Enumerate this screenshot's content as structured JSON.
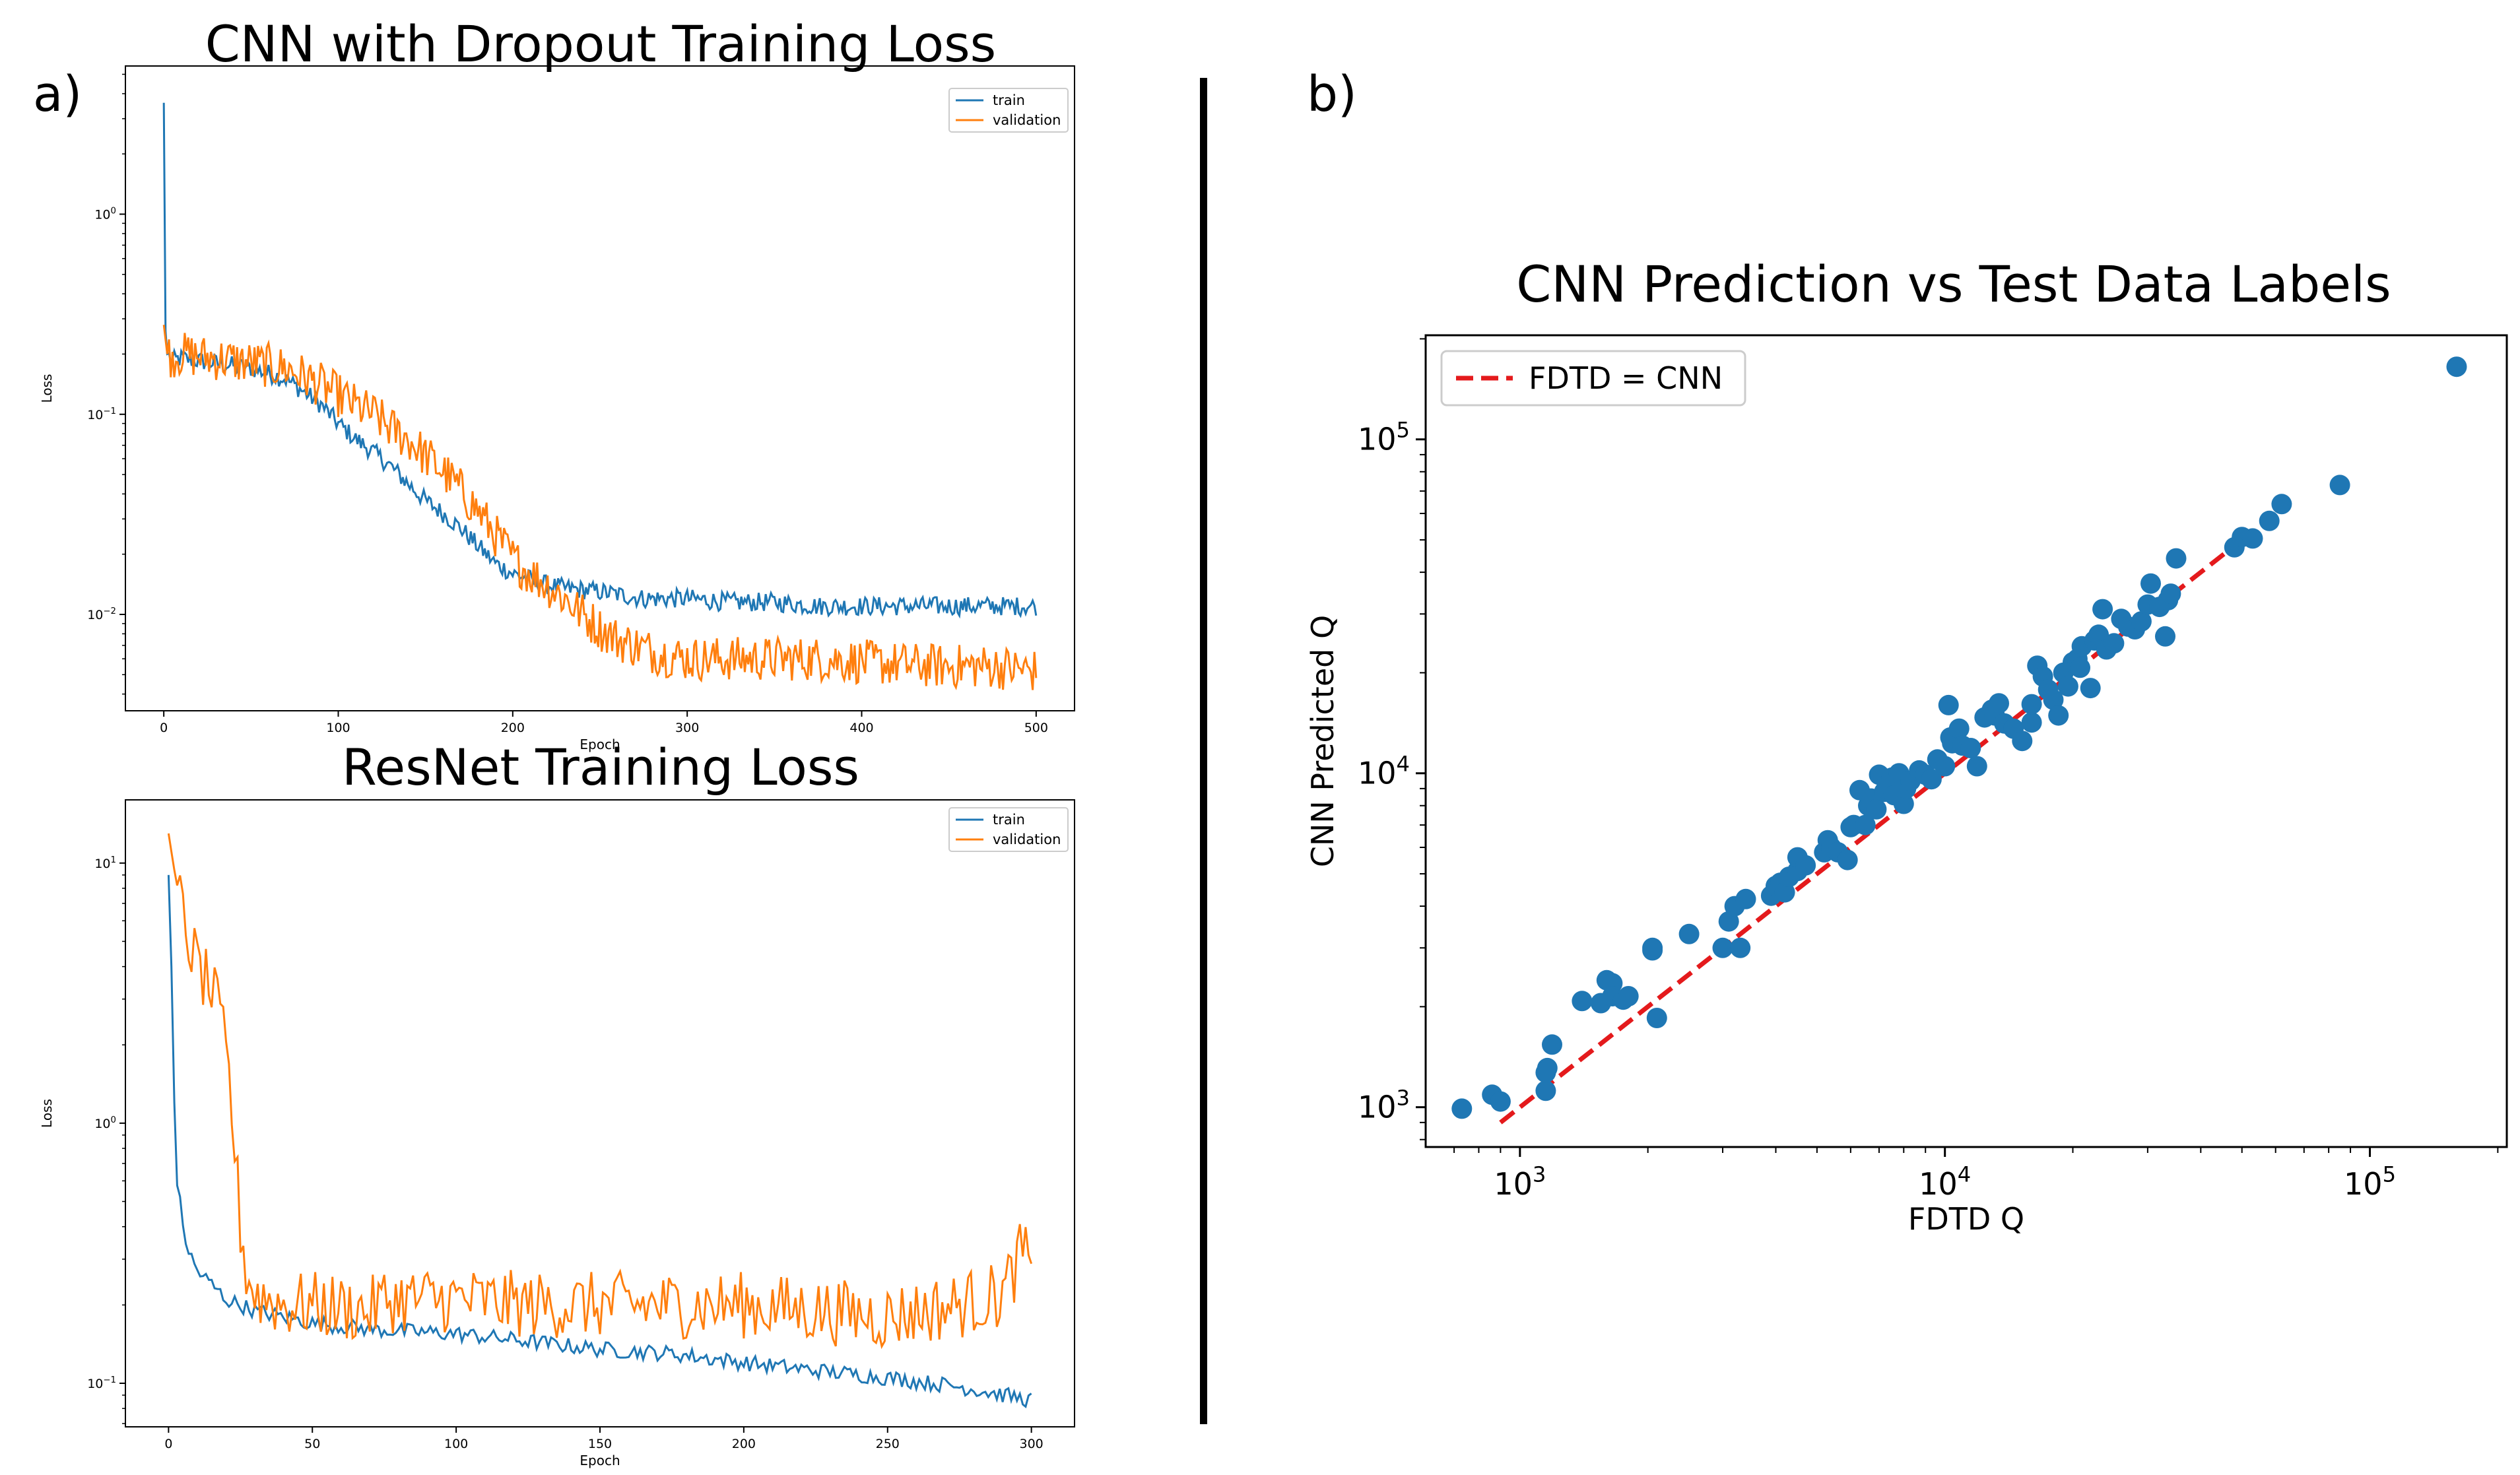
{
  "panel_labels": {
    "a": "a)",
    "b": "b)"
  },
  "chart_data": [
    {
      "type": "line",
      "title": "CNN with Dropout Training Loss",
      "xlabel": "Epoch",
      "ylabel": "Loss",
      "yscale": "log",
      "xlim": [
        -22,
        522
      ],
      "ylim": [
        0.0033,
        5.5
      ],
      "xticks": [
        "0",
        "100",
        "200",
        "300",
        "400",
        "500"
      ],
      "yticks": [
        "10^0",
        "10^-1",
        "10^-2"
      ],
      "legend_position": "top-right",
      "grid": false,
      "series": [
        {
          "name": "train",
          "color": "#1f77b4",
          "points": [
            [
              0,
              3.6
            ],
            [
              1,
              0.26
            ],
            [
              2,
              0.2
            ],
            [
              5,
              0.185
            ],
            [
              10,
              0.19
            ],
            [
              20,
              0.185
            ],
            [
              30,
              0.18
            ],
            [
              40,
              0.175
            ],
            [
              50,
              0.17
            ],
            [
              60,
              0.16
            ],
            [
              70,
              0.15
            ],
            [
              80,
              0.13
            ],
            [
              90,
              0.112
            ],
            [
              100,
              0.09
            ],
            [
              110,
              0.075
            ],
            [
              120,
              0.065
            ],
            [
              130,
              0.055
            ],
            [
              140,
              0.045
            ],
            [
              150,
              0.037
            ],
            [
              160,
              0.032
            ],
            [
              170,
              0.027
            ],
            [
              180,
              0.022
            ],
            [
              190,
              0.018
            ],
            [
              200,
              0.016
            ],
            [
              210,
              0.015
            ],
            [
              220,
              0.014
            ],
            [
              230,
              0.0135
            ],
            [
              250,
              0.013
            ],
            [
              275,
              0.012
            ],
            [
              300,
              0.012
            ],
            [
              325,
              0.0115
            ],
            [
              350,
              0.0115
            ],
            [
              375,
              0.011
            ],
            [
              400,
              0.011
            ],
            [
              425,
              0.011
            ],
            [
              450,
              0.011
            ],
            [
              475,
              0.011
            ],
            [
              500,
              0.011
            ]
          ],
          "noise": 0.11
        },
        {
          "name": "validation",
          "color": "#ff7f0e",
          "points": [
            [
              0,
              0.28
            ],
            [
              2,
              0.2
            ],
            [
              5,
              0.195
            ],
            [
              10,
              0.2
            ],
            [
              20,
              0.195
            ],
            [
              30,
              0.19
            ],
            [
              40,
              0.185
            ],
            [
              50,
              0.18
            ],
            [
              60,
              0.175
            ],
            [
              70,
              0.17
            ],
            [
              80,
              0.155
            ],
            [
              90,
              0.14
            ],
            [
              100,
              0.125
            ],
            [
              110,
              0.11
            ],
            [
              120,
              0.1
            ],
            [
              130,
              0.085
            ],
            [
              140,
              0.075
            ],
            [
              150,
              0.062
            ],
            [
              160,
              0.052
            ],
            [
              170,
              0.042
            ],
            [
              180,
              0.033
            ],
            [
              190,
              0.025
            ],
            [
              200,
              0.019
            ],
            [
              210,
              0.016
            ],
            [
              220,
              0.014
            ],
            [
              230,
              0.012
            ],
            [
              240,
              0.01
            ],
            [
              250,
              0.0085
            ],
            [
              260,
              0.0075
            ],
            [
              270,
              0.007
            ],
            [
              280,
              0.0065
            ],
            [
              300,
              0.006
            ],
            [
              325,
              0.006
            ],
            [
              350,
              0.006
            ],
            [
              375,
              0.006
            ],
            [
              400,
              0.0058
            ],
            [
              425,
              0.0056
            ],
            [
              450,
              0.0055
            ],
            [
              475,
              0.0055
            ],
            [
              500,
              0.0052
            ]
          ],
          "noise": 0.26
        }
      ]
    },
    {
      "type": "line",
      "title": "ResNet Training Loss",
      "xlabel": "Epoch",
      "ylabel": "Loss",
      "yscale": "log",
      "xlim": [
        -15,
        315
      ],
      "ylim": [
        0.068,
        17.5
      ],
      "xticks": [
        "0",
        "50",
        "100",
        "150",
        "200",
        "250",
        "300"
      ],
      "yticks": [
        "10^1",
        "10^0",
        "10^-1"
      ],
      "legend_position": "top-right",
      "grid": false,
      "series": [
        {
          "name": "train",
          "color": "#1f77b4",
          "points": [
            [
              0,
              9
            ],
            [
              1,
              4
            ],
            [
              2,
              1.2
            ],
            [
              3,
              0.6
            ],
            [
              5,
              0.4
            ],
            [
              7,
              0.32
            ],
            [
              10,
              0.27
            ],
            [
              15,
              0.24
            ],
            [
              20,
              0.21
            ],
            [
              25,
              0.2
            ],
            [
              30,
              0.19
            ],
            [
              40,
              0.18
            ],
            [
              50,
              0.17
            ],
            [
              75,
              0.16
            ],
            [
              100,
              0.155
            ],
            [
              125,
              0.145
            ],
            [
              150,
              0.135
            ],
            [
              175,
              0.13
            ],
            [
              200,
              0.12
            ],
            [
              225,
              0.112
            ],
            [
              250,
              0.105
            ],
            [
              275,
              0.097
            ],
            [
              300,
              0.086
            ]
          ],
          "noise": 0.07
        },
        {
          "name": "validation",
          "color": "#ff7f0e",
          "points": [
            [
              0,
              13
            ],
            [
              3,
              8
            ],
            [
              6,
              5.5
            ],
            [
              10,
              4
            ],
            [
              15,
              3.2
            ],
            [
              18,
              2.5
            ],
            [
              21,
              1.5
            ],
            [
              23,
              0.8
            ],
            [
              25,
              0.4
            ],
            [
              27,
              0.27
            ],
            [
              30,
              0.22
            ],
            [
              40,
              0.2
            ],
            [
              50,
              0.2
            ],
            [
              70,
              0.19
            ],
            [
              75,
              0.21
            ],
            [
              100,
              0.21
            ],
            [
              125,
              0.2
            ],
            [
              150,
              0.2
            ],
            [
              175,
              0.2
            ],
            [
              200,
              0.2
            ],
            [
              225,
              0.19
            ],
            [
              250,
              0.18
            ],
            [
              275,
              0.2
            ],
            [
              290,
              0.22
            ],
            [
              298,
              0.34
            ],
            [
              300,
              0.22
            ]
          ],
          "noise": 0.3
        }
      ]
    },
    {
      "type": "scatter",
      "title": "CNN Prediction vs Test Data Labels",
      "xlabel": "FDTD Q",
      "ylabel": "CNN Predicted Q",
      "xscale": "log",
      "yscale": "log",
      "xlim": [
        600,
        210000
      ],
      "ylim": [
        760,
        205000
      ],
      "xticks": [
        "10^3",
        "10^4",
        "10^5"
      ],
      "yticks": [
        "10^5",
        "10^4",
        "10^3"
      ],
      "legend_position": "top-left",
      "grid": false,
      "reference_line": {
        "name": "FDTD = CNN",
        "color": "#e41a1c",
        "x": [
          900,
          49000
        ],
        "y": [
          900,
          49000
        ]
      },
      "marker_color": "#1f77b4",
      "points": [
        [
          730,
          990
        ],
        [
          860,
          1090
        ],
        [
          900,
          1040
        ],
        [
          1150,
          1120
        ],
        [
          1150,
          1270
        ],
        [
          1160,
          1310
        ],
        [
          1190,
          1540
        ],
        [
          1400,
          2080
        ],
        [
          1550,
          2050
        ],
        [
          1600,
          2400
        ],
        [
          1650,
          2350
        ],
        [
          1650,
          2150
        ],
        [
          1750,
          2100
        ],
        [
          1800,
          2150
        ],
        [
          2050,
          3000
        ],
        [
          2050,
          2950
        ],
        [
          2100,
          1850
        ],
        [
          2500,
          3300
        ],
        [
          3000,
          3000
        ],
        [
          3100,
          3600
        ],
        [
          3200,
          4000
        ],
        [
          3300,
          3000
        ],
        [
          3400,
          4200
        ],
        [
          3900,
          4300
        ],
        [
          4000,
          4600
        ],
        [
          4100,
          4700
        ],
        [
          4200,
          4400
        ],
        [
          4300,
          4900
        ],
        [
          4500,
          5100
        ],
        [
          4500,
          5600
        ],
        [
          4700,
          5300
        ],
        [
          5200,
          5800
        ],
        [
          5300,
          6300
        ],
        [
          5400,
          6000
        ],
        [
          5600,
          5800
        ],
        [
          5900,
          5500
        ],
        [
          6000,
          6900
        ],
        [
          6100,
          7000
        ],
        [
          6300,
          8900
        ],
        [
          6500,
          7000
        ],
        [
          6600,
          8000
        ],
        [
          6700,
          8400
        ],
        [
          6900,
          7800
        ],
        [
          7000,
          9900
        ],
        [
          7200,
          8800
        ],
        [
          7300,
          9300
        ],
        [
          7500,
          9700
        ],
        [
          7600,
          8600
        ],
        [
          7800,
          10000
        ],
        [
          8000,
          8100
        ],
        [
          8100,
          9000
        ],
        [
          8300,
          9500
        ],
        [
          8700,
          10200
        ],
        [
          9000,
          9900
        ],
        [
          9300,
          9600
        ],
        [
          9600,
          11000
        ],
        [
          10000,
          10500
        ],
        [
          10200,
          16000
        ],
        [
          10300,
          12800
        ],
        [
          10400,
          12300
        ],
        [
          10800,
          13600
        ],
        [
          11000,
          12100
        ],
        [
          11500,
          11900
        ],
        [
          11900,
          10500
        ],
        [
          12400,
          14700
        ],
        [
          12900,
          15500
        ],
        [
          13100,
          14900
        ],
        [
          13400,
          16200
        ],
        [
          13800,
          14100
        ],
        [
          14500,
          13600
        ],
        [
          15200,
          12500
        ],
        [
          16000,
          14200
        ],
        [
          16000,
          16100
        ],
        [
          16500,
          21000
        ],
        [
          17000,
          19500
        ],
        [
          17500,
          17800
        ],
        [
          18000,
          16600
        ],
        [
          18500,
          14900
        ],
        [
          19000,
          20000
        ],
        [
          19500,
          18200
        ],
        [
          20000,
          21500
        ],
        [
          20500,
          22000
        ],
        [
          20800,
          20700
        ],
        [
          21000,
          24000
        ],
        [
          22000,
          18000
        ],
        [
          22500,
          25000
        ],
        [
          23000,
          26000
        ],
        [
          23500,
          31000
        ],
        [
          24000,
          23500
        ],
        [
          25000,
          24500
        ],
        [
          26000,
          29000
        ],
        [
          27000,
          27500
        ],
        [
          28000,
          27000
        ],
        [
          29000,
          28500
        ],
        [
          30000,
          32000
        ],
        [
          30500,
          37000
        ],
        [
          32000,
          31500
        ],
        [
          33000,
          25700
        ],
        [
          33500,
          33000
        ],
        [
          34000,
          34500
        ],
        [
          35000,
          44000
        ],
        [
          48000,
          47500
        ],
        [
          50000,
          51000
        ],
        [
          53000,
          50500
        ],
        [
          58000,
          57000
        ],
        [
          62000,
          64000
        ],
        [
          85000,
          73000
        ],
        [
          160000,
          165000
        ]
      ]
    }
  ]
}
